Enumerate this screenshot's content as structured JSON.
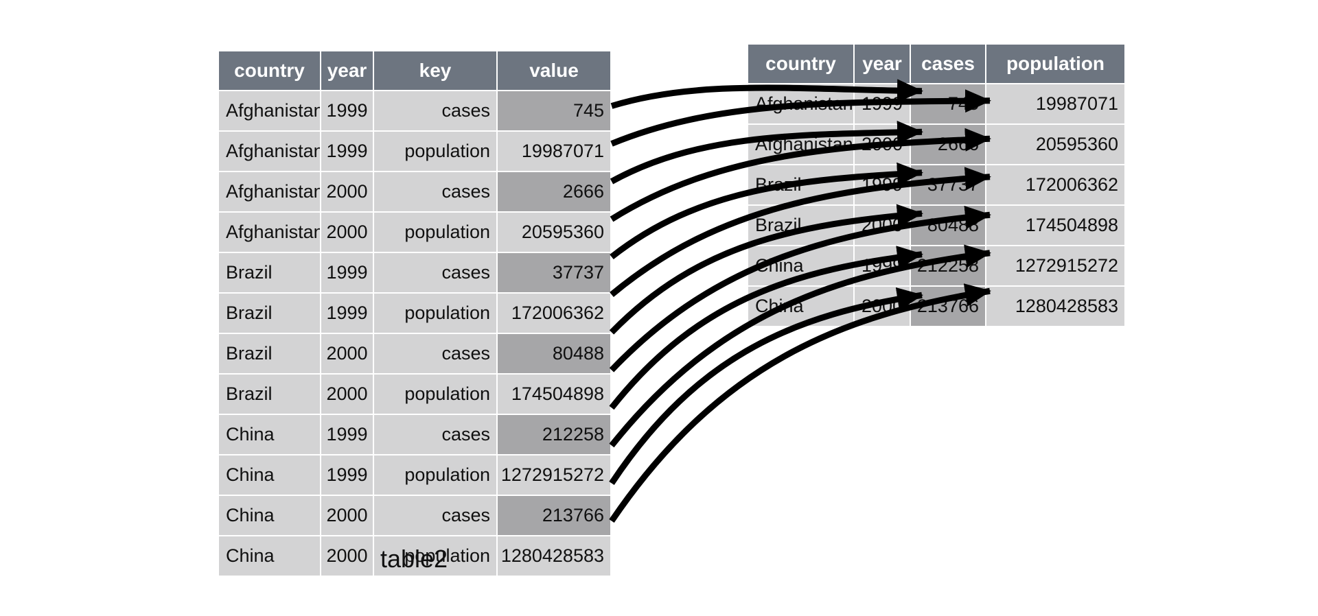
{
  "figure": {
    "caption": "table2",
    "colors": {
      "background": "#ffffff",
      "header_bg": "#6d7580",
      "header_text": "#ffffff",
      "cell_bg": "#d3d3d4",
      "highlight_bg": "#a6a6a8",
      "cell_text": "#101010",
      "arrow": "#000000"
    },
    "left_table": {
      "name": "table2",
      "columns": [
        "country",
        "year",
        "key",
        "value"
      ],
      "rows": [
        [
          "Afghanistan",
          "1999",
          "cases",
          "745"
        ],
        [
          "Afghanistan",
          "1999",
          "population",
          "19987071"
        ],
        [
          "Afghanistan",
          "2000",
          "cases",
          "2666"
        ],
        [
          "Afghanistan",
          "2000",
          "population",
          "20595360"
        ],
        [
          "Brazil",
          "1999",
          "cases",
          "37737"
        ],
        [
          "Brazil",
          "1999",
          "population",
          "172006362"
        ],
        [
          "Brazil",
          "2000",
          "cases",
          "80488"
        ],
        [
          "Brazil",
          "2000",
          "population",
          "174504898"
        ],
        [
          "China",
          "1999",
          "cases",
          "212258"
        ],
        [
          "China",
          "1999",
          "population",
          "1272915272"
        ],
        [
          "China",
          "2000",
          "cases",
          "213766"
        ],
        [
          "China",
          "2000",
          "population",
          "1280428583"
        ]
      ],
      "highlight": {
        "column": "value",
        "when": {
          "column": "key",
          "equals": "cases"
        }
      }
    },
    "right_table": {
      "columns": [
        "country",
        "year",
        "cases",
        "population"
      ],
      "rows": [
        [
          "Afghanistan",
          "1999",
          "745",
          "19987071"
        ],
        [
          "Afghanistan",
          "2000",
          "2666",
          "20595360"
        ],
        [
          "Brazil",
          "1999",
          "37737",
          "172006362"
        ],
        [
          "Brazil",
          "2000",
          "80488",
          "174504898"
        ],
        [
          "China",
          "1999",
          "212258",
          "1272915272"
        ],
        [
          "China",
          "2000",
          "213766",
          "1280428583"
        ]
      ],
      "highlight": {
        "column": "cases"
      }
    },
    "arrows": [
      {
        "from_row": 0,
        "to_row": 0,
        "to_column": "cases"
      },
      {
        "from_row": 1,
        "to_row": 0,
        "to_column": "population"
      },
      {
        "from_row": 2,
        "to_row": 1,
        "to_column": "cases"
      },
      {
        "from_row": 3,
        "to_row": 1,
        "to_column": "population"
      },
      {
        "from_row": 4,
        "to_row": 2,
        "to_column": "cases"
      },
      {
        "from_row": 5,
        "to_row": 2,
        "to_column": "population"
      },
      {
        "from_row": 6,
        "to_row": 3,
        "to_column": "cases"
      },
      {
        "from_row": 7,
        "to_row": 3,
        "to_column": "population"
      },
      {
        "from_row": 8,
        "to_row": 4,
        "to_column": "cases"
      },
      {
        "from_row": 9,
        "to_row": 4,
        "to_column": "population"
      },
      {
        "from_row": 10,
        "to_row": 5,
        "to_column": "cases"
      },
      {
        "from_row": 11,
        "to_row": 5,
        "to_column": "population"
      }
    ]
  }
}
